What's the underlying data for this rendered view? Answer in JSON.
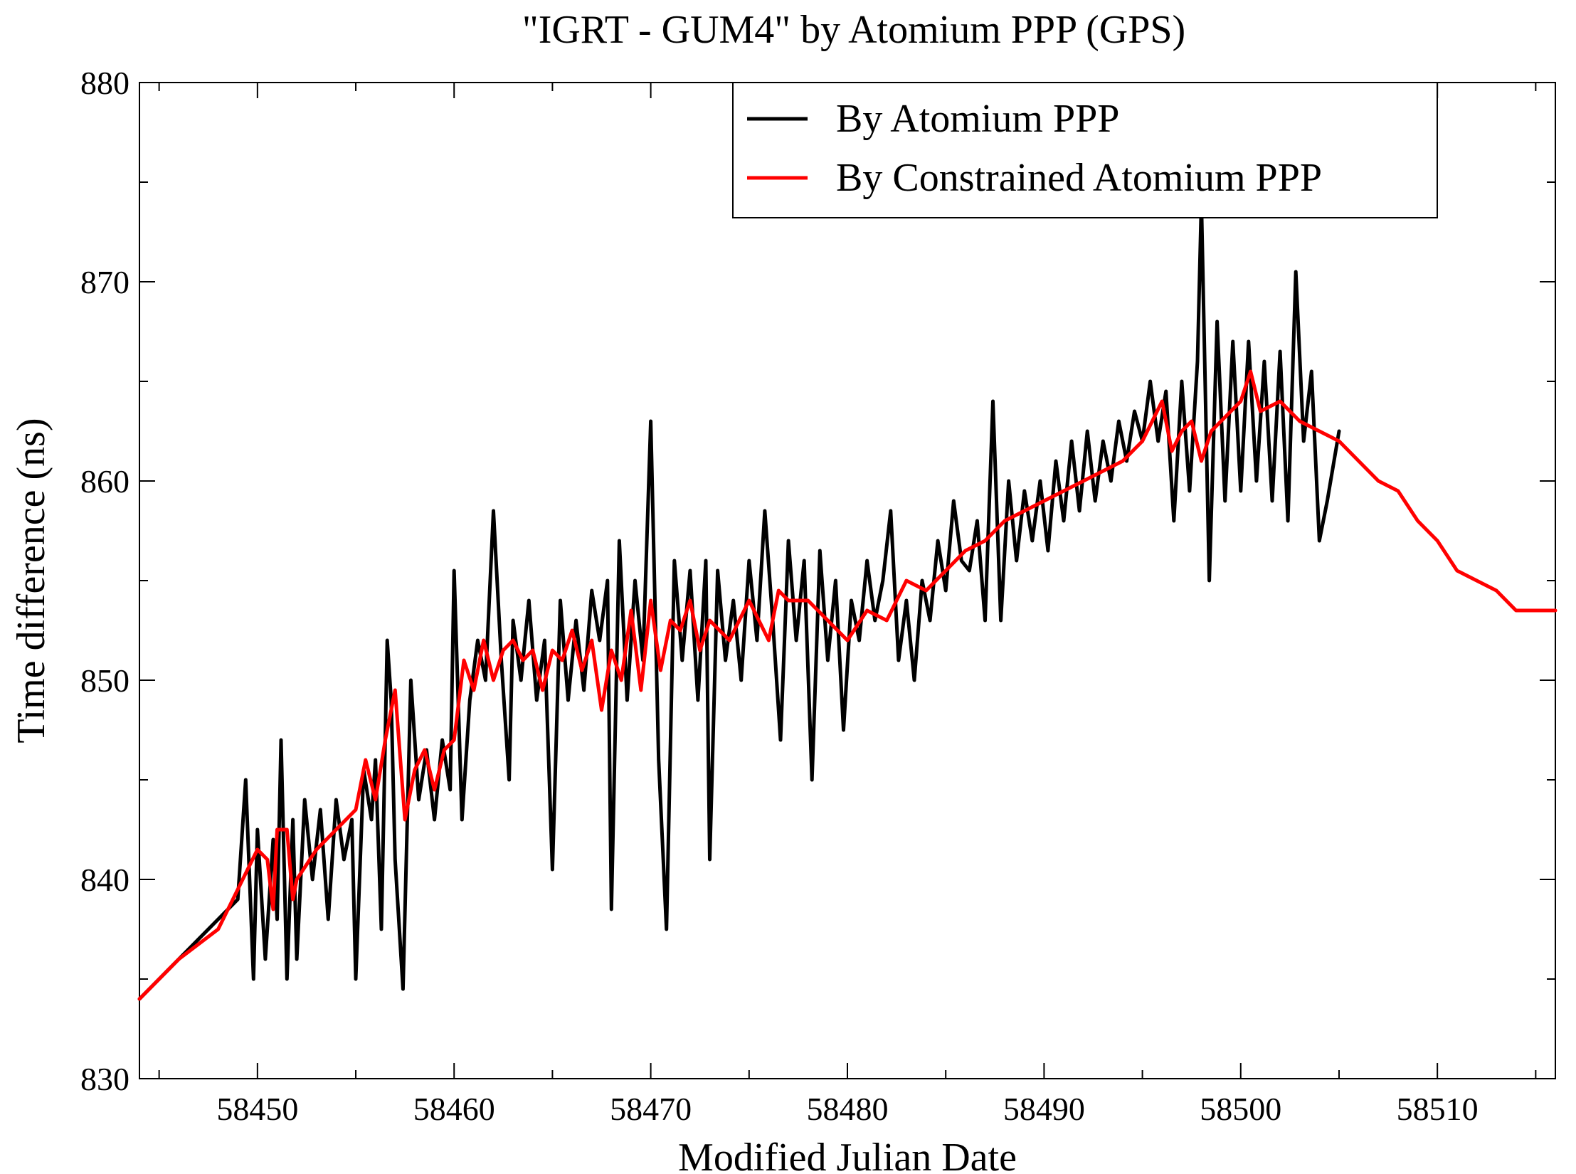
{
  "chart_data": {
    "type": "line",
    "title": "\"IGRT - GUM4\" by Atomium PPP (GPS)",
    "xlabel": "Modified Julian Date",
    "ylabel": "Time difference (ns)",
    "xlim": [
      58444,
      58516
    ],
    "ylim": [
      830,
      880
    ],
    "xticks": [
      58450,
      58460,
      58470,
      58480,
      58490,
      58500,
      58510
    ],
    "xtick_labels": [
      "58450",
      "58460",
      "58470",
      "58480",
      "58490",
      "58500",
      "58510"
    ],
    "yticks": [
      830,
      840,
      850,
      860,
      870,
      880
    ],
    "ytick_labels": [
      "830",
      "840",
      "850",
      "860",
      "870",
      "880"
    ],
    "legend_position": "top-right",
    "series": [
      {
        "name": "By Atomium PPP",
        "color": "#000000",
        "x": [
          58444.0,
          58446.0,
          58448.0,
          58449.0,
          58449.4,
          58449.8,
          58450.0,
          58450.4,
          58450.8,
          58451.0,
          58451.2,
          58451.5,
          58451.8,
          58452.0,
          58452.4,
          58452.8,
          58453.2,
          58453.6,
          58454.0,
          58454.4,
          58454.8,
          58455.0,
          58455.4,
          58455.8,
          58456.0,
          58456.3,
          58456.6,
          58456.8,
          58457.0,
          58457.4,
          58457.8,
          58458.2,
          58458.6,
          58459.0,
          58459.4,
          58459.8,
          58460.0,
          58460.4,
          58460.8,
          58461.2,
          58461.6,
          58462.0,
          58462.4,
          58462.8,
          58463.0,
          58463.4,
          58463.8,
          58464.2,
          58464.6,
          58465.0,
          58465.4,
          58465.8,
          58466.2,
          58466.6,
          58467.0,
          58467.4,
          58467.8,
          58468.0,
          58468.4,
          58468.8,
          58469.2,
          58469.6,
          58470.0,
          58470.4,
          58470.8,
          58471.2,
          58471.6,
          58472.0,
          58472.4,
          58472.8,
          58473.0,
          58473.4,
          58473.8,
          58474.2,
          58474.6,
          58475.0,
          58475.4,
          58475.8,
          58476.2,
          58476.6,
          58477.0,
          58477.4,
          58477.8,
          58478.2,
          58478.6,
          58479.0,
          58479.4,
          58479.8,
          58480.2,
          58480.6,
          58481.0,
          58481.4,
          58481.8,
          58482.2,
          58482.6,
          58483.0,
          58483.4,
          58483.8,
          58484.2,
          58484.6,
          58485.0,
          58485.4,
          58485.8,
          58486.2,
          58486.6,
          58487.0,
          58487.4,
          58487.8,
          58488.2,
          58488.6,
          58489.0,
          58489.4,
          58489.8,
          58490.2,
          58490.6,
          58491.0,
          58491.4,
          58491.8,
          58492.2,
          58492.6,
          58493.0,
          58493.4,
          58493.8,
          58494.2,
          58494.6,
          58495.0,
          58495.4,
          58495.8,
          58496.2,
          58496.6,
          58497.0,
          58497.4,
          58497.8,
          58498.0,
          58498.4,
          58498.8,
          58499.2,
          58499.6,
          58500.0,
          58500.4,
          58500.8,
          58501.2,
          58501.6,
          58502.0,
          58502.4,
          58502.8,
          58503.2,
          58503.6,
          58504.0,
          58504.4,
          58505.0
        ],
        "y": [
          834.0,
          836.0,
          838.0,
          839.0,
          845.0,
          835.0,
          842.5,
          836.0,
          842.0,
          838.0,
          847.0,
          835.0,
          843.0,
          836.0,
          844.0,
          840.0,
          843.5,
          838.0,
          844.0,
          841.0,
          843.0,
          835.0,
          845.5,
          843.0,
          846.0,
          837.5,
          852.0,
          849.0,
          841.0,
          834.5,
          850.0,
          844.0,
          846.5,
          843.0,
          847.0,
          844.5,
          855.5,
          843.0,
          849.0,
          852.0,
          850.0,
          858.5,
          851.0,
          845.0,
          853.0,
          850.0,
          854.0,
          849.0,
          852.0,
          840.5,
          854.0,
          849.0,
          853.0,
          849.5,
          854.5,
          852.0,
          855.0,
          838.5,
          857.0,
          849.0,
          855.0,
          851.0,
          863.0,
          846.0,
          837.5,
          856.0,
          851.0,
          855.5,
          849.0,
          856.0,
          841.0,
          855.5,
          851.0,
          854.0,
          850.0,
          856.0,
          852.0,
          858.5,
          853.0,
          847.0,
          857.0,
          852.0,
          856.0,
          845.0,
          856.5,
          851.0,
          855.0,
          847.5,
          854.0,
          852.0,
          856.0,
          853.0,
          855.0,
          858.5,
          851.0,
          854.0,
          850.0,
          855.0,
          853.0,
          857.0,
          854.5,
          859.0,
          856.0,
          855.5,
          858.0,
          853.0,
          864.0,
          853.0,
          860.0,
          856.0,
          859.5,
          857.0,
          860.0,
          856.5,
          861.0,
          858.0,
          862.0,
          858.5,
          862.5,
          859.0,
          862.0,
          860.0,
          863.0,
          861.0,
          863.5,
          862.0,
          865.0,
          862.0,
          864.5,
          858.0,
          865.0,
          859.5,
          866.0,
          874.0,
          855.0,
          868.0,
          859.0,
          867.0,
          859.5,
          867.0,
          860.0,
          866.0,
          859.0,
          866.5,
          858.0,
          870.5,
          862.0,
          865.5,
          857.0,
          859.0,
          862.5
        ]
      },
      {
        "name": "By Constrained Atomium PPP",
        "color": "#ff0000",
        "x": [
          58444.0,
          58446.0,
          58448.0,
          58450.0,
          58450.5,
          58450.8,
          58451.0,
          58451.5,
          58451.8,
          58452.0,
          58453.0,
          58454.0,
          58455.0,
          58455.5,
          58456.0,
          58456.5,
          58457.0,
          58457.5,
          58458.0,
          58458.5,
          58459.0,
          58459.5,
          58460.0,
          58460.5,
          58461.0,
          58461.5,
          58462.0,
          58462.5,
          58463.0,
          58463.5,
          58464.0,
          58464.5,
          58465.0,
          58465.5,
          58466.0,
          58466.5,
          58467.0,
          58467.5,
          58468.0,
          58468.5,
          58469.0,
          58469.5,
          58470.0,
          58470.5,
          58471.0,
          58471.5,
          58472.0,
          58472.5,
          58473.0,
          58474.0,
          58475.0,
          58475.5,
          58476.0,
          58476.5,
          58477.0,
          58478.0,
          58479.0,
          58479.5,
          58480.0,
          58481.0,
          58482.0,
          58483.0,
          58484.0,
          58485.0,
          58486.0,
          58487.0,
          58488.0,
          58489.0,
          58490.0,
          58491.0,
          58492.0,
          58493.0,
          58494.0,
          58495.0,
          58496.0,
          58496.5,
          58497.0,
          58497.5,
          58498.0,
          58498.5,
          58499.0,
          58500.0,
          58500.5,
          58501.0,
          58502.0,
          58503.0,
          58504.0,
          58505.0,
          58506.0,
          58507.0,
          58508.0,
          58509.0,
          58510.0,
          58511.0,
          58512.0,
          58513.0,
          58514.0,
          58515.0,
          58516.0
        ],
        "y": [
          834.0,
          836.0,
          837.5,
          841.5,
          841.0,
          838.5,
          842.5,
          842.5,
          839.0,
          840.0,
          841.5,
          842.5,
          843.5,
          846.0,
          844.0,
          847.0,
          849.5,
          843.0,
          845.5,
          846.5,
          844.5,
          846.5,
          847.0,
          851.0,
          849.5,
          852.0,
          850.0,
          851.5,
          852.0,
          851.0,
          851.5,
          849.5,
          851.5,
          851.0,
          852.5,
          850.5,
          852.0,
          848.5,
          851.5,
          850.0,
          853.5,
          849.5,
          854.0,
          850.5,
          853.0,
          852.5,
          854.0,
          851.5,
          853.0,
          852.0,
          854.0,
          853.0,
          852.0,
          854.5,
          854.0,
          854.0,
          853.0,
          852.5,
          852.0,
          853.5,
          853.0,
          855.0,
          854.5,
          855.5,
          856.5,
          857.0,
          858.0,
          858.5,
          859.0,
          859.5,
          860.0,
          860.5,
          861.0,
          862.0,
          864.0,
          861.5,
          862.5,
          863.0,
          861.0,
          862.5,
          863.0,
          864.0,
          865.5,
          863.5,
          864.0,
          863.0,
          862.5,
          862.0,
          861.0,
          860.0,
          859.5,
          858.0,
          857.0,
          855.5,
          855.0,
          854.5,
          853.5,
          853.5,
          853.5
        ]
      }
    ]
  }
}
